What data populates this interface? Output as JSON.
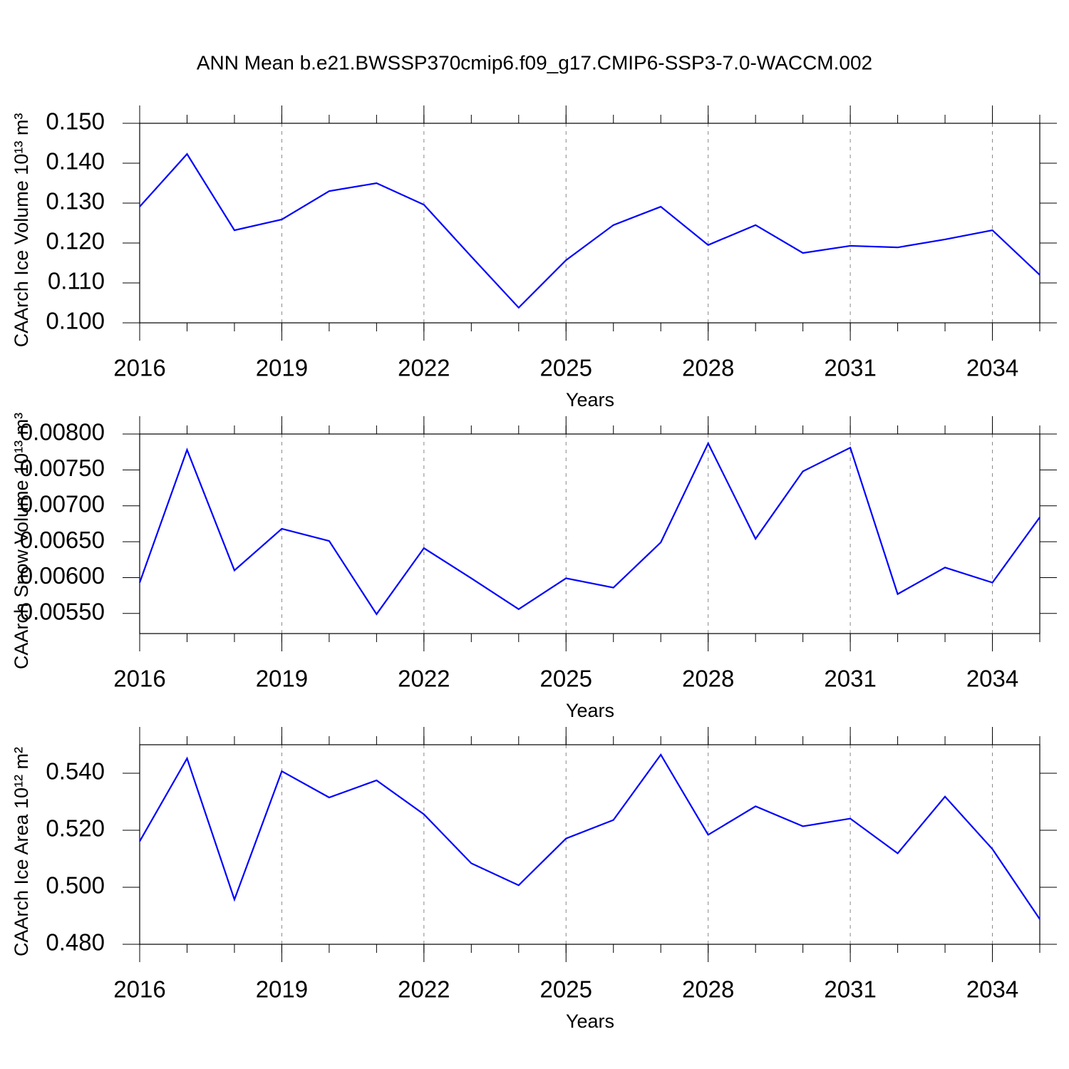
{
  "chart_data": [
    {
      "type": "line",
      "title": "ANN Mean b.e21.BWSSP370cmip6.f09_g17.CMIP6-SSP3-7.0-WACCM.002",
      "ylabel": "CAArch Ice Volume 10¹³ m³",
      "xlabel": "Years",
      "x": [
        2016,
        2017,
        2018,
        2019,
        2020,
        2021,
        2022,
        2023,
        2024,
        2025,
        2026,
        2027,
        2028,
        2029,
        2030,
        2031,
        2032,
        2033,
        2034,
        2035
      ],
      "values": [
        0.1291,
        0.1423,
        0.1232,
        0.1259,
        0.133,
        0.135,
        0.1296,
        0.1166,
        0.1038,
        0.1157,
        0.1245,
        0.1291,
        0.1195,
        0.1245,
        0.1175,
        0.1193,
        0.1189,
        0.1209,
        0.1232,
        0.112
      ],
      "color": "#0000ff",
      "xlim": [
        2016,
        2035
      ],
      "xticks": [
        2016,
        2019,
        2022,
        2025,
        2028,
        2031,
        2034
      ],
      "ylim": [
        0.1,
        0.15
      ],
      "yticks": [
        {
          "value": 0.1,
          "label": "0.100"
        },
        {
          "value": 0.11,
          "label": "0.110"
        },
        {
          "value": 0.12,
          "label": "0.120"
        },
        {
          "value": 0.13,
          "label": "0.130"
        },
        {
          "value": 0.14,
          "label": "0.140"
        },
        {
          "value": 0.15,
          "label": "0.150"
        }
      ],
      "grid": true
    },
    {
      "type": "line",
      "ylabel": "CAArch Snow Volume 10¹³ m³",
      "xlabel": "Years",
      "x": [
        2016,
        2017,
        2018,
        2019,
        2020,
        2021,
        2022,
        2023,
        2024,
        2025,
        2026,
        2027,
        2028,
        2029,
        2030,
        2031,
        2032,
        2033,
        2034,
        2035
      ],
      "values": [
        0.00593,
        0.00778,
        0.0061,
        0.00668,
        0.00651,
        0.00549,
        0.00641,
        0.00599,
        0.00556,
        0.00599,
        0.00586,
        0.00649,
        0.00787,
        0.00654,
        0.00748,
        0.00781,
        0.00577,
        0.00614,
        0.00593,
        0.00684
      ],
      "color": "#0000ff",
      "xlim": [
        2016,
        2035
      ],
      "xticks": [
        2016,
        2019,
        2022,
        2025,
        2028,
        2031,
        2034
      ],
      "ylim": [
        0.00522,
        0.008
      ],
      "yticks": [
        {
          "value": 0.0055,
          "label": "0.00550"
        },
        {
          "value": 0.006,
          "label": "0.00600"
        },
        {
          "value": 0.0065,
          "label": "0.00650"
        },
        {
          "value": 0.007,
          "label": "0.00700"
        },
        {
          "value": 0.0075,
          "label": "0.00750"
        },
        {
          "value": 0.008,
          "label": "0.00800"
        }
      ],
      "grid": true
    },
    {
      "type": "line",
      "ylabel": "CAArch Ice Area 10¹² m²",
      "xlabel": "Years",
      "x": [
        2016,
        2017,
        2018,
        2019,
        2020,
        2021,
        2022,
        2023,
        2024,
        2025,
        2026,
        2027,
        2028,
        2029,
        2030,
        2031,
        2032,
        2033,
        2034,
        2035
      ],
      "values": [
        0.5161,
        0.5452,
        0.4957,
        0.5407,
        0.5315,
        0.5375,
        0.5256,
        0.5084,
        0.5007,
        0.5171,
        0.5236,
        0.5465,
        0.5184,
        0.5284,
        0.5214,
        0.5241,
        0.5119,
        0.5318,
        0.5134,
        0.4888
      ],
      "color": "#0000ff",
      "xlim": [
        2016,
        2035
      ],
      "xticks": [
        2016,
        2019,
        2022,
        2025,
        2028,
        2031,
        2034
      ],
      "ylim": [
        0.48,
        0.55
      ],
      "yticks": [
        {
          "value": 0.48,
          "label": "0.480"
        },
        {
          "value": 0.5,
          "label": "0.500"
        },
        {
          "value": 0.52,
          "label": "0.520"
        },
        {
          "value": 0.54,
          "label": "0.540"
        }
      ],
      "grid": true
    }
  ]
}
